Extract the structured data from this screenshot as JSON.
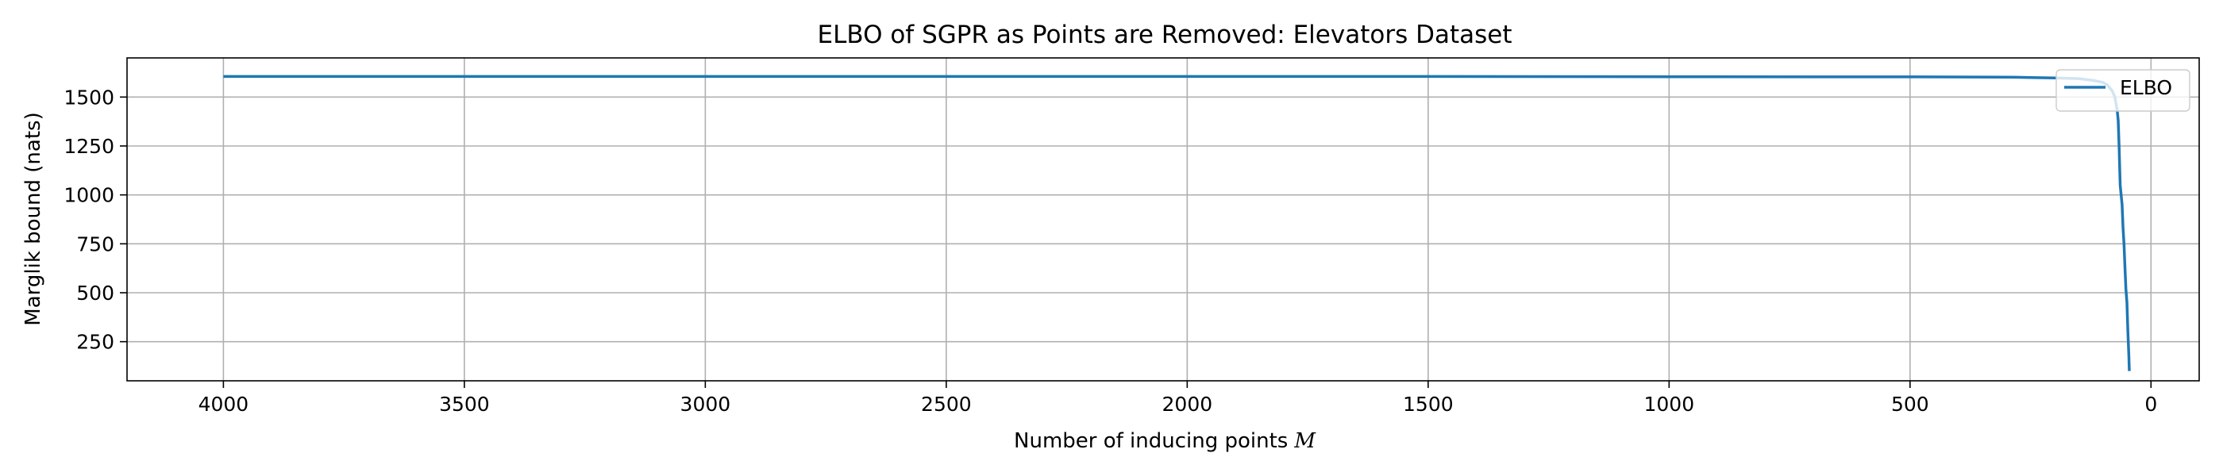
{
  "chart_data": {
    "type": "line",
    "title": "ELBO of SGPR as Points are Removed: Elevators Dataset",
    "xlabel": "Number of inducing points",
    "xlabel_math": "M",
    "ylabel": "Marglik bound (nats)",
    "xlim": [
      4200,
      -100
    ],
    "ylim": [
      50,
      1700
    ],
    "x_inverted": true,
    "xticks": [
      4000,
      3500,
      3000,
      2500,
      2000,
      1500,
      1000,
      500,
      0
    ],
    "xtick_labels": [
      "4000",
      "3500",
      "3000",
      "2500",
      "2000",
      "1500",
      "1000",
      "500",
      "0"
    ],
    "yticks": [
      250,
      500,
      750,
      1000,
      1250,
      1500
    ],
    "ytick_labels": [
      "250",
      "500",
      "750",
      1000,
      "1250",
      "1500"
    ],
    "grid": true,
    "legend_position": "upper right",
    "series": [
      {
        "name": "ELBO",
        "color": "#1f77b4",
        "x": [
          4000,
          3500,
          3000,
          2500,
          2000,
          1500,
          1000,
          500,
          300,
          250,
          200,
          150,
          120,
          100,
          90,
          80,
          75,
          70,
          68,
          66,
          65,
          64,
          62,
          60,
          58,
          56,
          54,
          52,
          50,
          48,
          46,
          45
        ],
        "y": [
          1605,
          1605,
          1605,
          1605,
          1605,
          1605,
          1604,
          1603,
          1602,
          1600,
          1598,
          1594,
          1585,
          1575,
          1560,
          1530,
          1500,
          1430,
          1380,
          1240,
          1150,
          1050,
          1000,
          950,
          830,
          750,
          630,
          520,
          450,
          300,
          180,
          100
        ]
      }
    ]
  }
}
